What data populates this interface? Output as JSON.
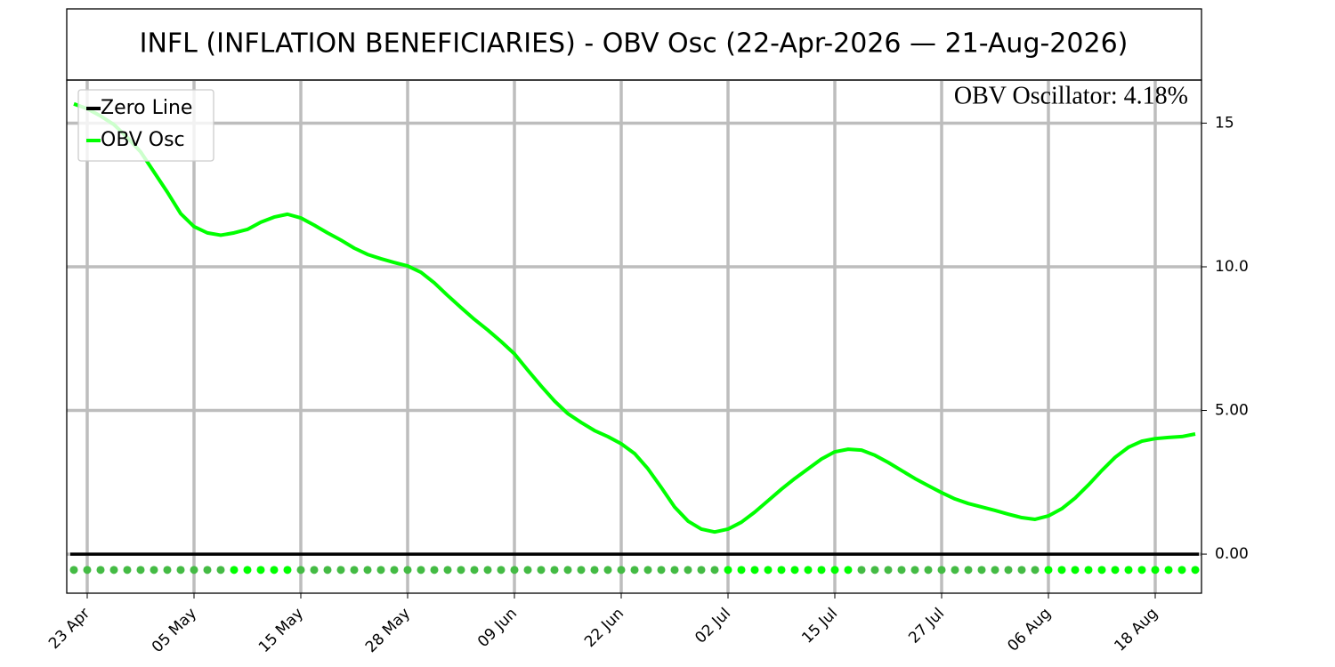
{
  "chart_data": {
    "type": "line",
    "title": "INFL (INFLATION BENEFICIARIES) - OBV Osc (22-Apr-2026 — 21-Aug-2026)",
    "annotation": "OBV Oscillator: 4.18%",
    "categories": [
      null,
      "23 Apr",
      null,
      null,
      null,
      null,
      null,
      null,
      null,
      "05 May",
      null,
      null,
      null,
      null,
      null,
      null,
      null,
      "15 May",
      null,
      null,
      null,
      null,
      null,
      null,
      null,
      "28 May",
      null,
      null,
      null,
      null,
      null,
      null,
      null,
      "09 Jun",
      null,
      null,
      null,
      null,
      null,
      null,
      null,
      "22 Jun",
      null,
      null,
      null,
      null,
      null,
      null,
      null,
      "02 Jul",
      null,
      null,
      null,
      null,
      null,
      null,
      null,
      "15 Jul",
      null,
      null,
      null,
      null,
      null,
      null,
      null,
      "27 Jul",
      null,
      null,
      null,
      null,
      null,
      null,
      null,
      "06 Aug",
      null,
      null,
      null,
      null,
      null,
      null,
      null,
      "18 Aug",
      null,
      null,
      null
    ],
    "series": [
      {
        "name": "OBV Osc",
        "color": "#00ff00",
        "values": [
          15.67,
          15.5,
          15.25,
          14.95,
          14.5,
          14.0,
          13.3,
          12.6,
          11.85,
          11.4,
          11.18,
          11.1,
          11.18,
          11.3,
          11.55,
          11.73,
          11.83,
          11.7,
          11.45,
          11.18,
          10.93,
          10.65,
          10.43,
          10.28,
          10.15,
          10.03,
          9.81,
          9.44,
          9.0,
          8.58,
          8.17,
          7.8,
          7.4,
          6.97,
          6.4,
          5.85,
          5.33,
          4.89,
          4.58,
          4.3,
          4.09,
          3.84,
          3.5,
          2.97,
          2.32,
          1.64,
          1.15,
          0.87,
          0.77,
          0.87,
          1.11,
          1.46,
          1.86,
          2.26,
          2.63,
          2.97,
          3.31,
          3.56,
          3.65,
          3.62,
          3.44,
          3.19,
          2.91,
          2.63,
          2.38,
          2.14,
          1.92,
          1.76,
          1.64,
          1.52,
          1.39,
          1.27,
          1.21,
          1.33,
          1.58,
          1.95,
          2.41,
          2.91,
          3.37,
          3.72,
          3.93,
          4.02,
          4.06,
          4.09,
          4.18
        ]
      }
    ],
    "hlines": [
      {
        "name": "Zero Line",
        "color": "#000000",
        "y": 0
      }
    ],
    "markers": {
      "y": -0.55,
      "colors": [
        "#44bb44",
        "#44bb44",
        "#44bb44",
        "#44bb44",
        "#44bb44",
        "#44bb44",
        "#44bb44",
        "#44bb44",
        "#44bb44",
        "#44bb44",
        "#44bb44",
        "#44bb44",
        "#00ff00",
        "#00ff00",
        "#00ff00",
        "#00ff00",
        "#00ff00",
        "#44bb44",
        "#44bb44",
        "#44bb44",
        "#44bb44",
        "#44bb44",
        "#44bb44",
        "#44bb44",
        "#44bb44",
        "#44bb44",
        "#44bb44",
        "#44bb44",
        "#44bb44",
        "#44bb44",
        "#44bb44",
        "#44bb44",
        "#44bb44",
        "#44bb44",
        "#44bb44",
        "#44bb44",
        "#44bb44",
        "#44bb44",
        "#44bb44",
        "#44bb44",
        "#44bb44",
        "#44bb44",
        "#44bb44",
        "#44bb44",
        "#44bb44",
        "#44bb44",
        "#44bb44",
        "#44bb44",
        "#44bb44",
        "#00ff00",
        "#00ff00",
        "#00ff00",
        "#00ff00",
        "#00ff00",
        "#00ff00",
        "#00ff00",
        "#00ff00",
        "#00ff00",
        "#00ff00",
        "#44bb44",
        "#44bb44",
        "#44bb44",
        "#44bb44",
        "#44bb44",
        "#44bb44",
        "#44bb44",
        "#44bb44",
        "#44bb44",
        "#44bb44",
        "#44bb44",
        "#44bb44",
        "#44bb44",
        "#44bb44",
        "#00ff00",
        "#00ff00",
        "#00ff00",
        "#00ff00",
        "#00ff00",
        "#00ff00",
        "#00ff00",
        "#00ff00",
        "#00ff00",
        "#00ff00",
        "#00ff00",
        "#00ff00"
      ]
    },
    "ylim": [
      -1.36,
      16.5
    ],
    "yticks": [
      {
        "value": 0,
        "label": "0.00"
      },
      {
        "value": 5,
        "label": "5.00"
      },
      {
        "value": 10,
        "label": "10.0"
      },
      15
    ],
    "grid": true,
    "legend": "upper left"
  }
}
